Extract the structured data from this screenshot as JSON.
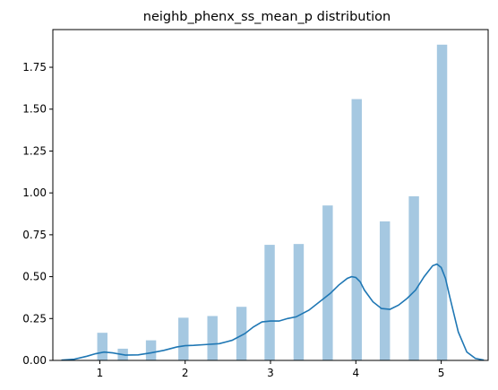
{
  "chart_data": {
    "type": "bar",
    "title": "neighb_phenx_ss_mean_p distribution",
    "xlabel": "",
    "ylabel": "",
    "xlim": [
      0.45,
      5.55
    ],
    "ylim": [
      0,
      1.975
    ],
    "grid": false,
    "legend": "none",
    "bar_color": "#a5c8e1",
    "line_color": "#1f77b4",
    "xticks": [
      {
        "value": 1,
        "label": "1"
      },
      {
        "value": 2,
        "label": "2"
      },
      {
        "value": 3,
        "label": "3"
      },
      {
        "value": 4,
        "label": "4"
      },
      {
        "value": 5,
        "label": "5"
      }
    ],
    "yticks": [
      {
        "value": 0,
        "label": "0.00"
      },
      {
        "value": 0.25,
        "label": "0.25"
      },
      {
        "value": 0.5,
        "label": "0.50"
      },
      {
        "value": 0.75,
        "label": "0.75"
      },
      {
        "value": 1.0,
        "label": "1.00"
      },
      {
        "value": 1.25,
        "label": "1.25"
      },
      {
        "value": 1.5,
        "label": "1.50"
      },
      {
        "value": 1.75,
        "label": "1.75"
      }
    ],
    "bar_width": 0.12,
    "bars": [
      {
        "x": 1.03,
        "value": 0.165
      },
      {
        "x": 1.27,
        "value": 0.07
      },
      {
        "x": 1.6,
        "value": 0.12
      },
      {
        "x": 1.98,
        "value": 0.255
      },
      {
        "x": 2.32,
        "value": 0.265
      },
      {
        "x": 2.66,
        "value": 0.32
      },
      {
        "x": 2.99,
        "value": 0.69
      },
      {
        "x": 3.33,
        "value": 0.695
      },
      {
        "x": 3.67,
        "value": 0.925
      },
      {
        "x": 4.01,
        "value": 1.56
      },
      {
        "x": 4.34,
        "value": 0.83
      },
      {
        "x": 4.68,
        "value": 0.98
      },
      {
        "x": 5.01,
        "value": 1.885
      }
    ],
    "kde": {
      "x": [
        0.55,
        0.7,
        0.85,
        0.95,
        1.05,
        1.15,
        1.3,
        1.45,
        1.6,
        1.75,
        1.9,
        2.0,
        2.1,
        2.25,
        2.4,
        2.55,
        2.7,
        2.8,
        2.9,
        3.0,
        3.1,
        3.2,
        3.3,
        3.45,
        3.6,
        3.7,
        3.8,
        3.9,
        3.95,
        4.0,
        4.05,
        4.1,
        4.2,
        4.3,
        4.4,
        4.5,
        4.6,
        4.7,
        4.8,
        4.9,
        4.95,
        5.0,
        5.05,
        5.1,
        5.2,
        5.3,
        5.4,
        5.5
      ],
      "y": [
        0.002,
        0.007,
        0.025,
        0.04,
        0.05,
        0.045,
        0.032,
        0.033,
        0.045,
        0.06,
        0.08,
        0.088,
        0.09,
        0.095,
        0.1,
        0.12,
        0.16,
        0.2,
        0.23,
        0.235,
        0.235,
        0.25,
        0.26,
        0.3,
        0.36,
        0.4,
        0.45,
        0.49,
        0.5,
        0.495,
        0.47,
        0.42,
        0.35,
        0.31,
        0.305,
        0.33,
        0.37,
        0.42,
        0.5,
        0.565,
        0.575,
        0.555,
        0.49,
        0.38,
        0.17,
        0.05,
        0.012,
        0.002
      ]
    }
  }
}
